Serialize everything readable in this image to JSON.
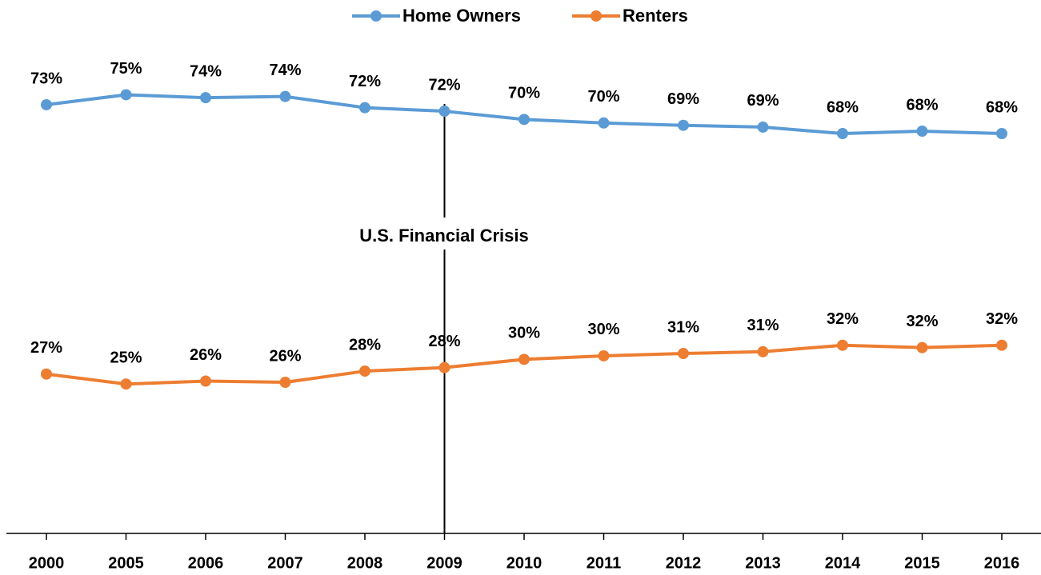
{
  "chart_data": {
    "type": "line",
    "categories": [
      "2000",
      "2005",
      "2006",
      "2007",
      "2008",
      "2009",
      "2010",
      "2011",
      "2012",
      "2013",
      "2014",
      "2015",
      "2016"
    ],
    "series": [
      {
        "name": "Home Owners",
        "color": "#5b9bd5",
        "values": [
          72.9,
          74.6,
          74.1,
          74.3,
          72.4,
          71.8,
          70.4,
          69.8,
          69.4,
          69.1,
          68.0,
          68.4,
          68.0
        ],
        "value_labels": [
          "73%",
          "75%",
          "74%",
          "74%",
          "72%",
          "72%",
          "70%",
          "70%",
          "69%",
          "69%",
          "68%",
          "68%",
          "68%"
        ]
      },
      {
        "name": "Renters",
        "color": "#ed7d31",
        "values": [
          27.1,
          25.4,
          25.9,
          25.7,
          27.6,
          28.2,
          29.6,
          30.2,
          30.6,
          30.9,
          32.0,
          31.6,
          32.0
        ],
        "value_labels": [
          "27%",
          "25%",
          "26%",
          "26%",
          "28%",
          "28%",
          "30%",
          "30%",
          "31%",
          "31%",
          "32%",
          "32%",
          "32%"
        ]
      }
    ],
    "ylim": [
      0,
      85
    ],
    "legend": "top",
    "annotation": {
      "text": "U.S. Financial  Crisis",
      "category": "2009"
    }
  }
}
